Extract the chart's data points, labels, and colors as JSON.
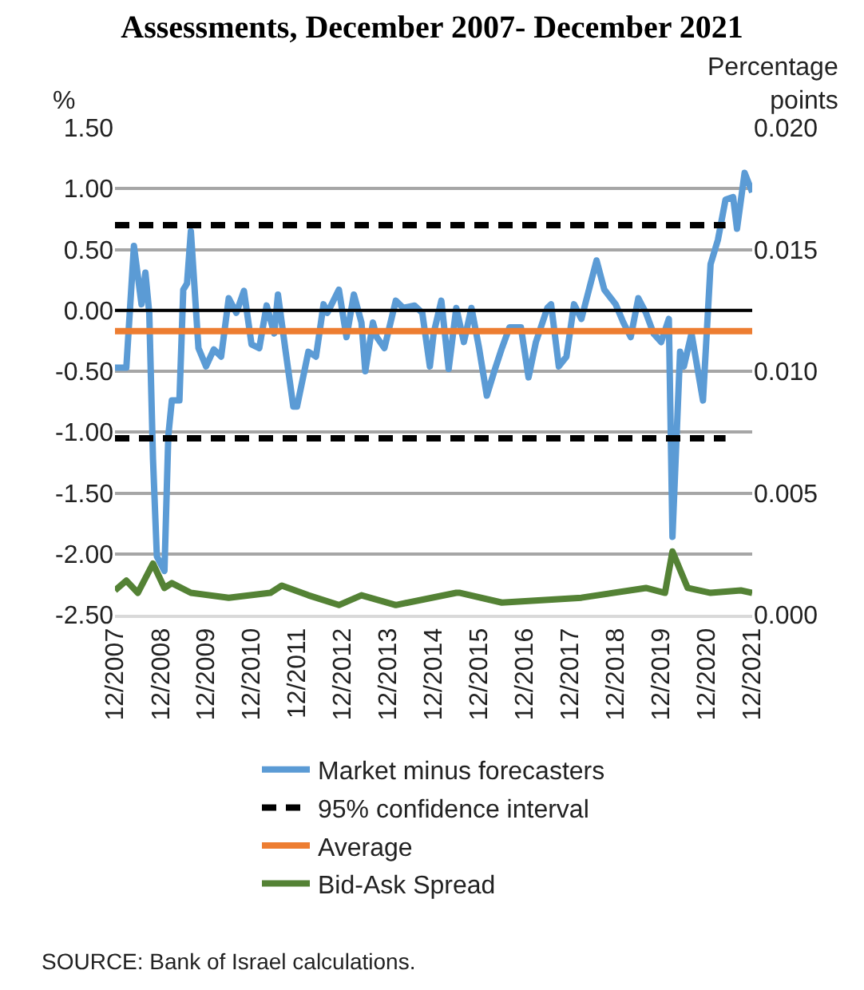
{
  "chart_data": {
    "type": "line",
    "title": "Assessments, December 2007- December 2021",
    "ylabel": "%",
    "y2label": "Percentage points",
    "xlim": [
      "2007-12",
      "2021-12"
    ],
    "xticks": [
      {
        "value": "2007-12",
        "label": "12/2007"
      },
      {
        "value": "2008-12",
        "label": "12/2008"
      },
      {
        "value": "2009-12",
        "label": "12/2009"
      },
      {
        "value": "2010-12",
        "label": "12/2010"
      },
      {
        "value": "2011-12",
        "label": "12/2011"
      },
      {
        "value": "2012-12",
        "label": "12/2012"
      },
      {
        "value": "2013-12",
        "label": "12/2013"
      },
      {
        "value": "2014-12",
        "label": "12/2014"
      },
      {
        "value": "2015-12",
        "label": "12/2015"
      },
      {
        "value": "2016-12",
        "label": "12/2016"
      },
      {
        "value": "2017-12",
        "label": "12/2017"
      },
      {
        "value": "2018-12",
        "label": "12/2018"
      },
      {
        "value": "2019-12",
        "label": "12/2019"
      },
      {
        "value": "2020-12",
        "label": "12/2020"
      },
      {
        "value": "2021-12",
        "label": "12/2021"
      }
    ],
    "ylim": [
      -2.5,
      1.5
    ],
    "yticks": [
      {
        "value": -2.5,
        "label": "-2.50"
      },
      {
        "value": -2,
        "label": "-2.00"
      },
      {
        "value": -1.5,
        "label": "-1.50"
      },
      {
        "value": -1,
        "label": "-1.00"
      },
      {
        "value": -0.5,
        "label": "-0.50"
      },
      {
        "value": 0,
        "label": "0.00"
      },
      {
        "value": 0.5,
        "label": "0.50"
      },
      {
        "value": 1,
        "label": "1.00"
      },
      {
        "value": 1.5,
        "label": "1.50"
      }
    ],
    "y2lim": [
      0,
      0.02
    ],
    "y2ticks": [
      {
        "value": 0,
        "label": "0.000"
      },
      {
        "value": 0.005,
        "label": "0.005"
      },
      {
        "value": 0.01,
        "label": "0.010"
      },
      {
        "value": 0.015,
        "label": "0.015"
      },
      {
        "value": 0.02,
        "label": "0.020"
      }
    ],
    "grid": "y",
    "legend": "bottom",
    "marker": "none",
    "ref_lines": [
      {
        "axis": "y",
        "value": 0,
        "color": "#000000"
      }
    ],
    "series": [
      {
        "name": "Market minus forecasters",
        "color": "#5b9bd5",
        "line_style": "solid",
        "x": [
          "2007-12",
          "2008-03",
          "2008-05",
          "2008-07",
          "2008-08",
          "2008-09",
          "2008-10",
          "2008-11",
          "2009-01",
          "2009-02",
          "2009-03",
          "2009-05",
          "2009-06",
          "2009-07",
          "2009-08",
          "2009-10",
          "2009-12",
          "2010-02",
          "2010-04",
          "2010-06",
          "2010-08",
          "2010-10",
          "2010-12",
          "2011-02",
          "2011-04",
          "2011-06",
          "2011-07",
          "2011-09",
          "2011-11",
          "2011-12",
          "2012-03",
          "2012-05",
          "2012-07",
          "2012-08",
          "2012-11",
          "2013-01",
          "2013-03",
          "2013-05",
          "2013-06",
          "2013-08",
          "2013-09",
          "2013-11",
          "2014-02",
          "2014-04",
          "2014-07",
          "2014-09",
          "2014-11",
          "2014-12",
          "2015-02",
          "2015-04",
          "2015-06",
          "2015-08",
          "2015-10",
          "2015-12",
          "2016-02",
          "2016-04",
          "2016-06",
          "2016-08",
          "2016-11",
          "2017-01",
          "2017-03",
          "2017-06",
          "2017-07",
          "2017-09",
          "2017-11",
          "2018-01",
          "2018-03",
          "2018-05",
          "2018-07",
          "2018-09",
          "2018-12",
          "2019-02",
          "2019-04",
          "2019-06",
          "2019-08",
          "2019-10",
          "2019-12",
          "2020-02",
          "2020-03",
          "2020-05",
          "2020-06",
          "2020-08",
          "2020-11",
          "2021-01",
          "2021-03",
          "2021-05",
          "2021-07",
          "2021-08",
          "2021-10",
          "2021-12"
        ],
        "values": [
          -0.47,
          -0.47,
          0.53,
          0.05,
          0.31,
          -0.02,
          -1.22,
          -2.02,
          -2.14,
          -1.03,
          -0.74,
          -0.74,
          0.17,
          0.22,
          0.65,
          -0.31,
          -0.46,
          -0.32,
          -0.38,
          0.1,
          -0.02,
          0.16,
          -0.28,
          -0.31,
          0.04,
          -0.19,
          0.13,
          -0.34,
          -0.79,
          -0.79,
          -0.34,
          -0.38,
          0.05,
          -0.02,
          0.17,
          -0.22,
          0.13,
          -0.1,
          -0.5,
          -0.1,
          -0.22,
          -0.31,
          0.08,
          0.02,
          0.04,
          -0.02,
          -0.46,
          -0.19,
          0.08,
          -0.48,
          0.02,
          -0.26,
          0.02,
          -0.31,
          -0.7,
          -0.5,
          -0.31,
          -0.14,
          -0.14,
          -0.55,
          -0.26,
          0.02,
          0.05,
          -0.46,
          -0.38,
          0.05,
          -0.07,
          0.17,
          0.41,
          0.17,
          0.05,
          -0.1,
          -0.22,
          0.1,
          -0.02,
          -0.19,
          -0.26,
          -0.07,
          -1.86,
          -0.34,
          -0.46,
          -0.19,
          -0.74,
          0.38,
          0.58,
          0.91,
          0.93,
          0.67,
          1.13,
          0.97
        ]
      },
      {
        "name": "95% confidence interval",
        "color": "#000000",
        "line_style": "dashed",
        "x": [
          "2007-12",
          "2021-05"
        ],
        "values": [
          0.7,
          0.7
        ]
      },
      {
        "color": "#000000",
        "line_style": "dashed",
        "x": [
          "2007-12",
          "2021-05"
        ],
        "values": [
          -1.05,
          -1.05
        ]
      },
      {
        "name": "Average",
        "color": "#ed7d31",
        "line_style": "solid",
        "x": [
          "2007-12",
          "2021-12"
        ],
        "values": [
          -0.17,
          -0.17
        ]
      },
      {
        "name": "Bid-Ask Spread",
        "color": "#548235",
        "line_style": "solid",
        "axis": "y2",
        "x": [
          "2007-12",
          "2008-03",
          "2008-06",
          "2008-10",
          "2009-01",
          "2009-03",
          "2009-08",
          "2010-06",
          "2011-05",
          "2011-08",
          "2012-03",
          "2012-11",
          "2013-05",
          "2014-02",
          "2015-06",
          "2015-07",
          "2016-06",
          "2018-03",
          "2019-08",
          "2020-01",
          "2020-03",
          "2020-07",
          "2021-01",
          "2021-09",
          "2021-12"
        ],
        "values": [
          0.001,
          0.0014,
          0.0009,
          0.0021,
          0.0011,
          0.0013,
          0.0009,
          0.0007,
          0.0009,
          0.0012,
          0.0008,
          0.0004,
          0.0008,
          0.0004,
          0.0009,
          0.0009,
          0.0005,
          0.0007,
          0.0011,
          0.0009,
          0.0026,
          0.0011,
          0.0009,
          0.001,
          0.0009
        ]
      }
    ],
    "annotations": [
      "SOURCE: Bank of Israel calculations."
    ]
  }
}
